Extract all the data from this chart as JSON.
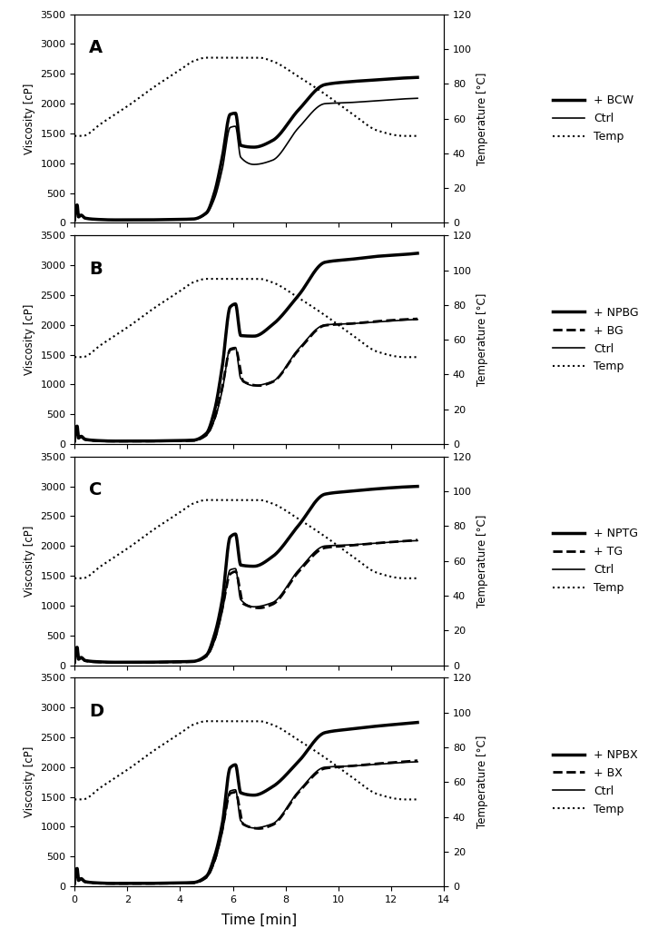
{
  "panels": [
    {
      "label": "A",
      "legend": [
        "+ BCW",
        "Ctrl",
        "Temp"
      ],
      "legend_styles": [
        [
          "solid",
          2.5
        ],
        [
          "solid",
          1.2
        ],
        [
          "dotted",
          1.5
        ]
      ]
    },
    {
      "label": "B",
      "legend": [
        "+ NPBG",
        "+ BG",
        "Ctrl",
        "Temp"
      ],
      "legend_styles": [
        [
          "solid",
          2.5
        ],
        [
          "dashed",
          2.0
        ],
        [
          "solid",
          1.2
        ],
        [
          "dotted",
          1.5
        ]
      ]
    },
    {
      "label": "C",
      "legend": [
        "+ NPTG",
        "+ TG",
        "Ctrl",
        "Temp"
      ],
      "legend_styles": [
        [
          "solid",
          2.5
        ],
        [
          "dashed",
          2.0
        ],
        [
          "solid",
          1.2
        ],
        [
          "dotted",
          1.5
        ]
      ]
    },
    {
      "label": "D",
      "legend": [
        "+ NPBX",
        "+ BX",
        "Ctrl",
        "Temp"
      ],
      "legend_styles": [
        [
          "solid",
          2.5
        ],
        [
          "dashed",
          2.0
        ],
        [
          "solid",
          1.2
        ],
        [
          "dotted",
          1.5
        ]
      ]
    }
  ],
  "xlim": [
    0,
    14
  ],
  "ylim_visc": [
    0,
    3500
  ],
  "ylim_temp": [
    0,
    120
  ],
  "xlabel": "Time [min]",
  "ylabel_left": "Viscosity [cP]",
  "ylabel_right": "Temperature [°C]",
  "temp_knots_x": [
    0.0,
    0.3,
    1.0,
    2.0,
    3.0,
    4.0,
    4.5,
    5.0,
    5.5,
    6.0,
    6.5,
    7.0,
    7.5,
    8.5,
    9.5,
    10.5,
    11.5,
    12.5,
    13.0
  ],
  "temp_knots_y": [
    50,
    50,
    57,
    67,
    78,
    88,
    93,
    95,
    95,
    95,
    95,
    95,
    93,
    84,
    74,
    63,
    53,
    50,
    50
  ],
  "ctrl_knots_x": [
    0.0,
    0.1,
    0.15,
    0.25,
    0.4,
    0.8,
    1.5,
    2.5,
    3.5,
    4.5,
    5.0,
    5.3,
    5.6,
    5.9,
    6.1,
    6.3,
    6.8,
    7.5,
    8.5,
    9.5,
    10.5,
    11.5,
    12.5,
    13.0
  ],
  "ctrl_knots_y": [
    50,
    280,
    100,
    130,
    80,
    60,
    50,
    50,
    55,
    60,
    150,
    400,
    900,
    1600,
    1620,
    1100,
    980,
    1050,
    1600,
    2000,
    2020,
    2050,
    2080,
    2090
  ],
  "BCW_knots_x": [
    0.0,
    0.1,
    0.15,
    0.25,
    0.4,
    0.8,
    1.5,
    2.5,
    3.5,
    4.5,
    5.0,
    5.3,
    5.6,
    5.9,
    6.1,
    6.3,
    6.8,
    7.5,
    8.5,
    9.5,
    10.5,
    11.5,
    12.5,
    13.0
  ],
  "BCW_knots_y": [
    50,
    300,
    100,
    130,
    80,
    60,
    50,
    50,
    55,
    65,
    170,
    500,
    1100,
    1820,
    1840,
    1300,
    1270,
    1380,
    1900,
    2320,
    2370,
    2400,
    2430,
    2440
  ],
  "NPBG_knots_x": [
    0.0,
    0.1,
    0.15,
    0.25,
    0.4,
    0.8,
    1.5,
    2.5,
    3.5,
    4.5,
    5.0,
    5.3,
    5.6,
    5.9,
    6.1,
    6.3,
    6.8,
    7.5,
    8.5,
    9.5,
    10.5,
    11.5,
    12.5,
    13.0
  ],
  "NPBG_knots_y": [
    50,
    300,
    100,
    130,
    80,
    60,
    50,
    50,
    55,
    65,
    180,
    550,
    1300,
    2300,
    2350,
    1820,
    1810,
    2000,
    2500,
    3050,
    3100,
    3150,
    3180,
    3200
  ],
  "BG_knots_x": [
    0.0,
    0.1,
    0.15,
    0.25,
    0.4,
    0.8,
    1.5,
    2.5,
    3.5,
    4.5,
    5.0,
    5.3,
    5.6,
    5.9,
    6.1,
    6.4,
    7.0,
    7.5,
    8.5,
    9.5,
    10.5,
    11.5,
    12.5,
    13.0
  ],
  "BG_knots_y": [
    50,
    280,
    100,
    120,
    75,
    55,
    48,
    48,
    52,
    58,
    150,
    420,
    950,
    1580,
    1600,
    1050,
    980,
    1040,
    1580,
    1990,
    2020,
    2060,
    2090,
    2100
  ],
  "NPTG_knots_x": [
    0.0,
    0.1,
    0.15,
    0.25,
    0.4,
    0.8,
    1.5,
    2.5,
    3.5,
    4.5,
    5.0,
    5.3,
    5.6,
    5.9,
    6.1,
    6.3,
    6.8,
    7.5,
    8.5,
    9.5,
    10.5,
    11.5,
    12.5,
    13.0
  ],
  "NPTG_knots_y": [
    50,
    300,
    100,
    130,
    80,
    60,
    50,
    50,
    55,
    65,
    170,
    500,
    1100,
    2150,
    2200,
    1680,
    1660,
    1820,
    2350,
    2870,
    2920,
    2960,
    2990,
    3000
  ],
  "TG_knots_x": [
    0.0,
    0.1,
    0.15,
    0.25,
    0.4,
    0.8,
    1.5,
    2.5,
    3.5,
    4.5,
    5.0,
    5.3,
    5.6,
    5.9,
    6.1,
    6.4,
    7.0,
    7.5,
    8.5,
    9.5,
    10.5,
    11.5,
    12.5,
    13.0
  ],
  "TG_knots_y": [
    50,
    280,
    100,
    120,
    75,
    55,
    48,
    48,
    52,
    58,
    150,
    420,
    950,
    1530,
    1570,
    1030,
    960,
    1020,
    1570,
    1970,
    2010,
    2050,
    2080,
    2100
  ],
  "NPBX_knots_x": [
    0.0,
    0.1,
    0.15,
    0.25,
    0.4,
    0.8,
    1.5,
    2.5,
    3.5,
    4.5,
    5.0,
    5.3,
    5.6,
    5.9,
    6.1,
    6.3,
    6.8,
    7.5,
    8.5,
    9.5,
    10.5,
    11.5,
    12.5,
    13.0
  ],
  "NPBX_knots_y": [
    50,
    300,
    100,
    130,
    80,
    60,
    50,
    50,
    55,
    65,
    170,
    490,
    1050,
    1990,
    2040,
    1570,
    1530,
    1670,
    2100,
    2580,
    2640,
    2690,
    2730,
    2750
  ],
  "BX_knots_x": [
    0.0,
    0.1,
    0.15,
    0.25,
    0.4,
    0.8,
    1.5,
    2.5,
    3.5,
    4.5,
    5.0,
    5.3,
    5.6,
    5.9,
    6.1,
    6.4,
    7.0,
    7.5,
    8.5,
    9.5,
    10.5,
    11.5,
    12.5,
    13.0
  ],
  "BX_knots_y": [
    50,
    280,
    100,
    120,
    75,
    55,
    48,
    48,
    52,
    58,
    150,
    420,
    950,
    1560,
    1580,
    1040,
    970,
    1030,
    1580,
    1980,
    2020,
    2060,
    2090,
    2110
  ]
}
